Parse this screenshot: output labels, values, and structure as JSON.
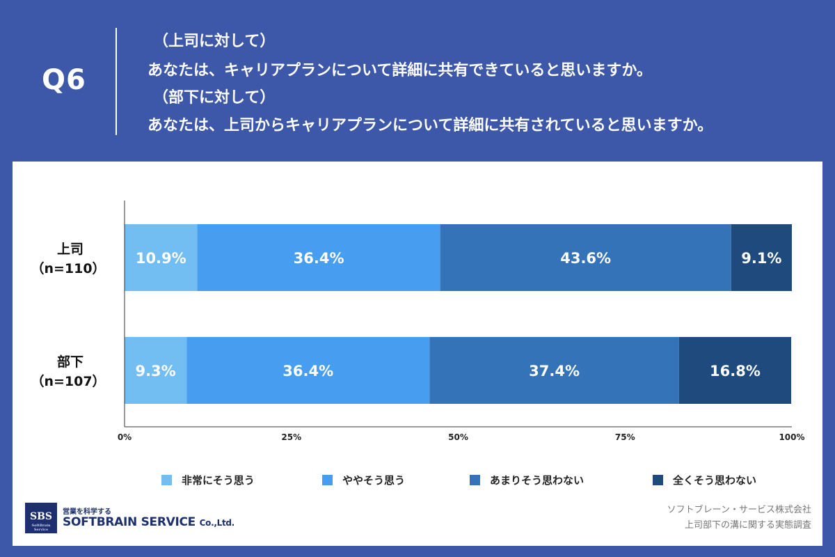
{
  "header": {
    "q_label": "Q6",
    "line1": "（上司に対して）",
    "line2": "あなたは、キャリアプランについて詳細に共有できていると思いますか。",
    "line3": "（部下に対して）",
    "line4": "あなたは、上司からキャリアプランについて詳細に共有されていると思いますか。"
  },
  "chart_data": {
    "type": "bar",
    "orientation": "horizontal",
    "stacked": true,
    "categories": [
      {
        "line1": "上司",
        "line2": "（n=110）"
      },
      {
        "line1": "部下",
        "line2": "（n=107）"
      }
    ],
    "series": [
      {
        "name": "非常にそう思う",
        "color": "#72bdf2",
        "values": [
          10.9,
          9.3
        ],
        "labels": [
          "10.9%",
          "9.3%"
        ]
      },
      {
        "name": "ややそう思う",
        "color": "#479ef0",
        "values": [
          36.4,
          36.4
        ],
        "labels": [
          "36.4%",
          "36.4%"
        ]
      },
      {
        "name": "あまりそう思わない",
        "color": "#3473b7",
        "values": [
          43.6,
          37.4
        ],
        "labels": [
          "43.6%",
          "37.4%"
        ]
      },
      {
        "name": "全くそう思わない",
        "color": "#1e4a7e",
        "values": [
          9.1,
          16.8
        ],
        "labels": [
          "9.1%",
          "16.8%"
        ]
      }
    ],
    "xlim": [
      0,
      100
    ],
    "xticks": [
      0,
      25,
      50,
      75,
      100
    ],
    "xtick_labels": [
      "0%",
      "25%",
      "50%",
      "75%",
      "100%"
    ],
    "grid": false,
    "legend_position": "bottom"
  },
  "footer": {
    "logo_badge": "SBS",
    "logo_badge_sub": "SoftBrain Service",
    "logo_tagline": "営業を科学する",
    "logo_company": "SOFTBRAIN SERVICE",
    "logo_company_suffix": "Co.,Ltd.",
    "source_line1": "ソフトブレーン・サービス株式会社",
    "source_line2": "上司部下の溝に関する実態調査"
  }
}
